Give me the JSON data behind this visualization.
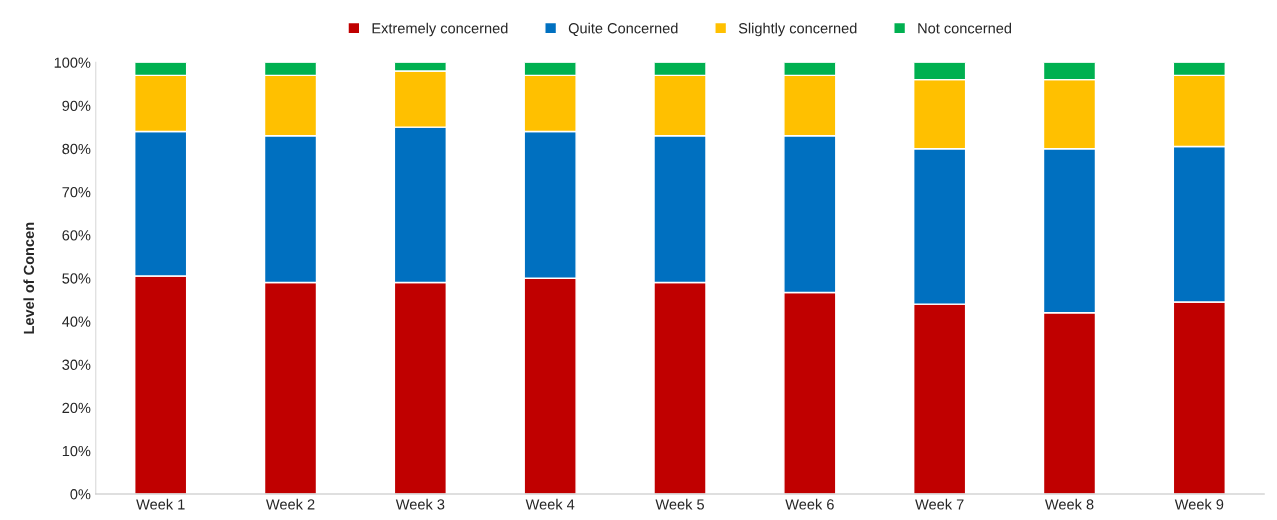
{
  "chart_data": {
    "type": "bar",
    "stacked": true,
    "ylabel": "Level of Concen",
    "categories": [
      "Week 1",
      "Week 2",
      "Week 3",
      "Week 4",
      "Week 5",
      "Week 6",
      "Week 7",
      "Week 8",
      "Week 9"
    ],
    "series": [
      {
        "name": "Extremely concerned",
        "color": "#c00000",
        "values": [
          50.5,
          49,
          49,
          50,
          49,
          46.7,
          44,
          42,
          44.5
        ]
      },
      {
        "name": "Quite Concerned",
        "color": "#0070c0",
        "values": [
          33.5,
          34,
          36,
          34,
          34,
          36.3,
          36,
          38,
          36
        ]
      },
      {
        "name": "Slightly concerned",
        "color": "#ffc000",
        "values": [
          13,
          14,
          13,
          13,
          14,
          14,
          16,
          16,
          16.5
        ]
      },
      {
        "name": "Not concerned",
        "color": "#00b050",
        "values": [
          3,
          3,
          2,
          3,
          3,
          3,
          4,
          4,
          3
        ]
      }
    ],
    "ylim": [
      0,
      100
    ],
    "yticks": [
      {
        "value": 0,
        "label": "0%"
      },
      {
        "value": 10,
        "label": "10%"
      },
      {
        "value": 20,
        "label": "20%"
      },
      {
        "value": 30,
        "label": "30%"
      },
      {
        "value": 40,
        "label": "40%"
      },
      {
        "value": 50,
        "label": "50%"
      },
      {
        "value": 60,
        "label": "60%"
      },
      {
        "value": 70,
        "label": "70%"
      },
      {
        "value": 80,
        "label": "80%"
      },
      {
        "value": 90,
        "label": "90%"
      },
      {
        "value": 100,
        "label": "100%"
      }
    ],
    "legend": "top",
    "grid": false
  }
}
